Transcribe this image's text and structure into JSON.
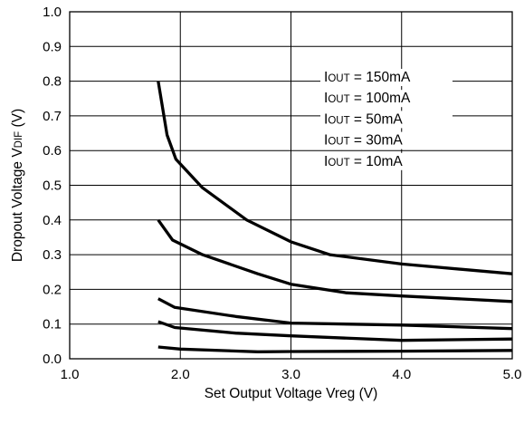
{
  "chart_data": {
    "type": "line",
    "xlabel": "Set Output Voltage Vreg (V)",
    "ylabel_main": "Dropout Voltage V",
    "ylabel_sub": "DIF",
    "ylabel_unit": " (V)",
    "xlim": [
      1.0,
      5.0
    ],
    "ylim": [
      0.0,
      1.0
    ],
    "x_ticks": [
      "1.0",
      "2.0",
      "3.0",
      "4.0",
      "5.0"
    ],
    "y_ticks": [
      "0.0",
      "0.1",
      "0.2",
      "0.3",
      "0.4",
      "0.5",
      "0.6",
      "0.7",
      "0.8",
      "0.9",
      "1.0"
    ],
    "grid": true,
    "legend_position": "top-right",
    "legend_prefix": "I",
    "legend_sub": "OUT",
    "series": [
      {
        "name": "= 150mA",
        "color": "#000000",
        "points": [
          [
            1.8,
            0.8
          ],
          [
            1.88,
            0.645
          ],
          [
            1.96,
            0.575
          ],
          [
            2.2,
            0.493
          ],
          [
            2.6,
            0.4
          ],
          [
            3.0,
            0.337
          ],
          [
            3.35,
            0.3
          ],
          [
            4.0,
            0.273
          ],
          [
            5.0,
            0.245
          ]
        ]
      },
      {
        "name": "= 100mA",
        "color": "#000000",
        "points": [
          [
            1.8,
            0.4
          ],
          [
            1.93,
            0.342
          ],
          [
            2.2,
            0.3
          ],
          [
            2.7,
            0.245
          ],
          [
            3.0,
            0.215
          ],
          [
            3.5,
            0.19
          ],
          [
            4.0,
            0.181
          ],
          [
            5.0,
            0.165
          ]
        ]
      },
      {
        "name": "= 50mA",
        "color": "#000000",
        "points": [
          [
            1.8,
            0.173
          ],
          [
            1.95,
            0.148
          ],
          [
            2.5,
            0.122
          ],
          [
            3.0,
            0.103
          ],
          [
            4.0,
            0.097
          ],
          [
            5.0,
            0.087
          ]
        ]
      },
      {
        "name": "= 30mA",
        "color": "#000000",
        "points": [
          [
            1.8,
            0.107
          ],
          [
            1.95,
            0.09
          ],
          [
            2.5,
            0.074
          ],
          [
            3.0,
            0.066
          ],
          [
            4.0,
            0.053
          ],
          [
            5.0,
            0.057
          ]
        ]
      },
      {
        "name": "= 10mA",
        "color": "#000000",
        "points": [
          [
            1.8,
            0.034
          ],
          [
            2.0,
            0.028
          ],
          [
            2.7,
            0.02
          ],
          [
            3.0,
            0.021
          ],
          [
            4.0,
            0.022
          ],
          [
            5.0,
            0.024
          ]
        ]
      }
    ]
  }
}
